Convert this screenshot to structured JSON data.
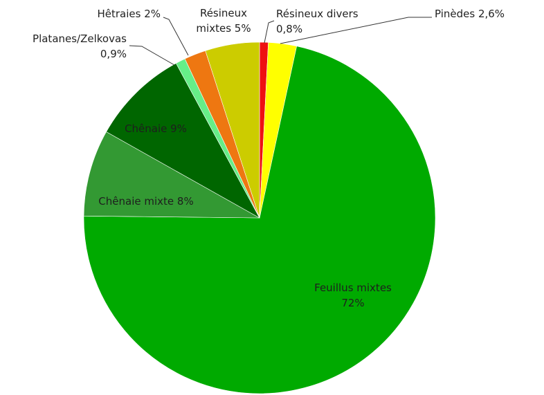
{
  "chart_data": {
    "type": "pie",
    "title": "",
    "slices": [
      {
        "label_lines": [
          "Résineux divers",
          "0,8%"
        ],
        "value": 0.8,
        "color": "#ee1111"
      },
      {
        "label_lines": [
          "Pinèdes 2,6%"
        ],
        "value": 2.6,
        "color": "#ffff00"
      },
      {
        "label_lines": [
          "Feuillus mixtes",
          "72%"
        ],
        "value": 72,
        "color": "#00aa00"
      },
      {
        "label_lines": [
          "Chênaie mixte 8%"
        ],
        "value": 8,
        "color": "#339933"
      },
      {
        "label_lines": [
          "Chênaie 9%"
        ],
        "value": 9,
        "color": "#006600"
      },
      {
        "label_lines": [
          "Platanes/Zelkovas",
          "0,9%"
        ],
        "value": 0.9,
        "color": "#66ee88"
      },
      {
        "label_lines": [
          "Hêtraies 2%"
        ],
        "value": 2,
        "color": "#ee7711"
      },
      {
        "label_lines": [
          "Résineux",
          "mixtes 5%"
        ],
        "value": 5,
        "color": "#cccc00"
      }
    ],
    "legend": "none"
  }
}
